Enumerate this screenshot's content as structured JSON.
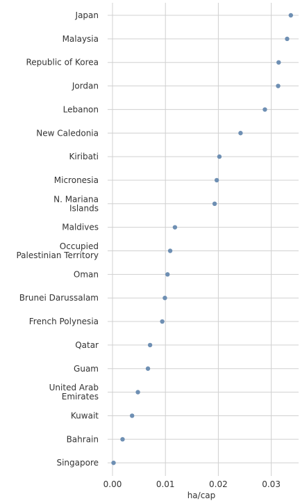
{
  "chart_data": {
    "type": "scatter",
    "title": "",
    "xlabel": "ha/cap",
    "ylabel": "",
    "xlim": [
      0,
      0.0365
    ],
    "xticks": [
      0,
      0.01,
      0.02,
      0.03
    ],
    "xtick_labels": [
      "0.00",
      "0.01",
      "0.02",
      "0.03"
    ],
    "grid": true,
    "legend": "none",
    "point_color": "#6e8fb3",
    "categories": [
      [
        "Japan"
      ],
      [
        "Malaysia"
      ],
      [
        "Republic of Korea"
      ],
      [
        "Jordan"
      ],
      [
        "Lebanon"
      ],
      [
        "New Caledonia"
      ],
      [
        "Kiribati"
      ],
      [
        "Micronesia"
      ],
      [
        "N. Mariana",
        "Islands"
      ],
      [
        "Maldives"
      ],
      [
        "Occupied",
        "Palestinian Territory"
      ],
      [
        "Oman"
      ],
      [
        "Brunei Darussalam"
      ],
      [
        "French Polynesia"
      ],
      [
        "Qatar"
      ],
      [
        "Guam"
      ],
      [
        "United Arab",
        "Emirates"
      ],
      [
        "Kuwait"
      ],
      [
        "Bahrain"
      ],
      [
        "Singapore"
      ]
    ],
    "values": [
      0.0337,
      0.033,
      0.0314,
      0.0313,
      0.0288,
      0.0242,
      0.0202,
      0.0197,
      0.0193,
      0.0118,
      0.0109,
      0.0104,
      0.0099,
      0.0094,
      0.0071,
      0.0067,
      0.0048,
      0.0037,
      0.0019,
      0.0002
    ]
  }
}
